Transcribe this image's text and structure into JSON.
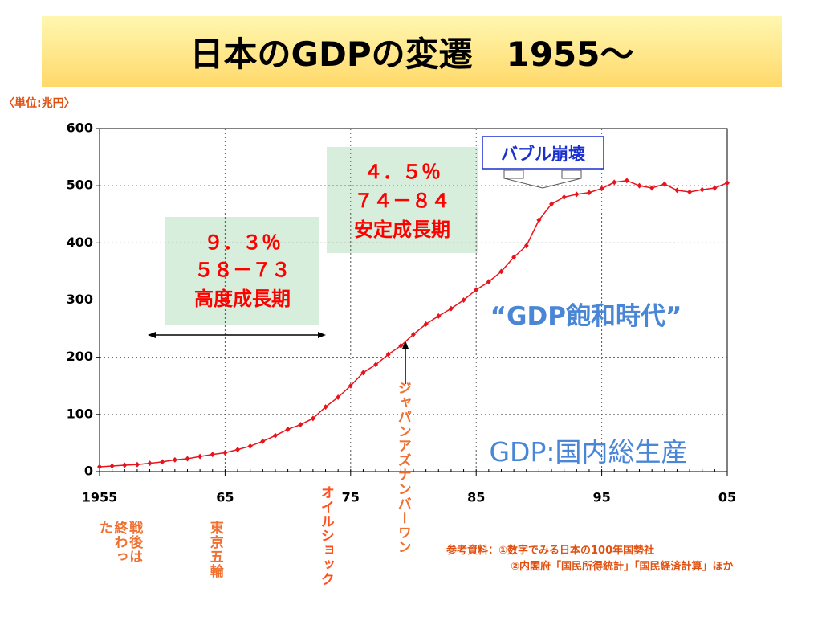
{
  "chart_data": {
    "type": "line",
    "title": "日本のGDPの変遷　1955～",
    "y_axis_label": "〈単位:兆円〉",
    "x": [
      1955,
      1956,
      1957,
      1958,
      1959,
      1960,
      1961,
      1962,
      1963,
      1964,
      1965,
      1966,
      1967,
      1968,
      1969,
      1970,
      1971,
      1972,
      1973,
      1974,
      1975,
      1976,
      1977,
      1978,
      1979,
      1980,
      1981,
      1982,
      1983,
      1984,
      1985,
      1986,
      1987,
      1988,
      1989,
      1990,
      1991,
      1992,
      1993,
      1994,
      1995,
      1996,
      1997,
      1998,
      1999,
      2000,
      2001,
      2002,
      2003,
      2004,
      2005
    ],
    "series": [
      {
        "name": "GDP",
        "color": "#e8141c",
        "values": [
          8.4,
          9.8,
          11.2,
          12.3,
          14.5,
          17,
          20.5,
          22.5,
          26.5,
          30,
          33,
          38.5,
          44.5,
          53,
          63,
          74,
          82,
          93,
          113,
          130,
          150,
          173,
          187,
          205,
          220,
          240,
          258,
          272,
          285,
          300,
          318,
          332,
          350,
          375,
          395,
          440,
          468,
          480,
          485,
          488,
          495,
          506,
          509,
          500,
          496,
          503,
          492,
          489,
          493,
          496,
          505
        ]
      }
    ],
    "xlim": [
      1955,
      2005
    ],
    "xticks": [
      1955,
      {
        "value": 1965,
        "label": "65"
      },
      {
        "value": 1975,
        "label": "75"
      },
      {
        "value": 1985,
        "label": "85"
      },
      {
        "value": 1995,
        "label": "95"
      },
      {
        "value": 2005,
        "label": "05"
      }
    ],
    "ylim": [
      0,
      600
    ],
    "yticks": [
      0,
      100,
      200,
      300,
      400,
      500,
      600
    ],
    "grid": true,
    "annotations": [
      "９．３％",
      "５８－７３",
      "高度成長期",
      "４．５％",
      "７４－８４",
      "安定成長期",
      "バブル崩壊",
      "“GDP飽和時代”",
      "GDP:国内総生産",
      "戦後は終わった",
      "東京五輪",
      "オイルショック",
      "ジャパンアズナンバーワン",
      "参考資料：①数字でみる日本の100年国勢社",
      "②内閣府「国民所得統計」「国民経済計算」ほか"
    ]
  }
}
